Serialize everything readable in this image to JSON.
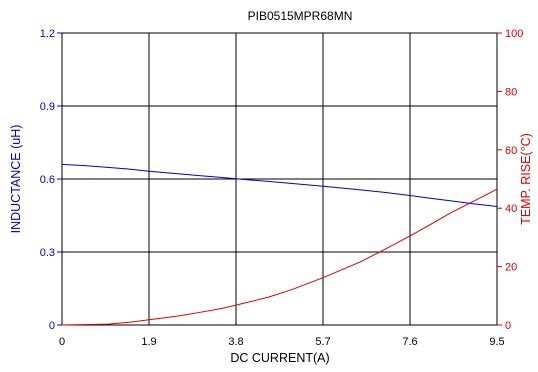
{
  "chart_data": {
    "type": "line",
    "title": "PIB0515MPR68MN",
    "xlabel": "DC CURRENT(A)",
    "ylabel_left": "INDUCTANCE (uH)",
    "ylabel_right": "TEMP. RISE(°C)",
    "xlim": [
      0,
      9.5
    ],
    "ylim_left": [
      0,
      1.2
    ],
    "ylim_right": [
      0,
      100
    ],
    "x_ticks": [
      "0",
      "1.9",
      "3.8",
      "5.7",
      "7.6",
      "9.5"
    ],
    "y_left_ticks": [
      "0",
      "0.3",
      "0.6",
      "0.9",
      "1.2"
    ],
    "y_right_ticks": [
      "0",
      "20",
      "40",
      "60",
      "80",
      "100"
    ],
    "grid": true,
    "legend": "none",
    "colors": {
      "inductance": "#0000cc",
      "temp_rise": "#dd0000",
      "grid": "#000000",
      "frame": "#000000"
    },
    "series": [
      {
        "axis": "left",
        "x": [
          0,
          0.5,
          1.0,
          1.5,
          1.9,
          2.5,
          3.0,
          3.5,
          3.8,
          4.5,
          5.0,
          5.7,
          6.5,
          7.0,
          7.6,
          8.0,
          8.5,
          9.0,
          9.5
        ],
        "values": [
          0.66,
          0.655,
          0.648,
          0.64,
          0.632,
          0.622,
          0.614,
          0.606,
          0.601,
          0.59,
          0.582,
          0.57,
          0.556,
          0.546,
          0.532,
          0.522,
          0.51,
          0.498,
          0.487
        ]
      },
      {
        "axis": "right",
        "x": [
          0,
          1.0,
          1.5,
          1.9,
          2.5,
          3.0,
          3.5,
          3.8,
          4.5,
          5.0,
          5.7,
          6.5,
          7.0,
          7.6,
          8.0,
          8.5,
          9.0,
          9.5
        ],
        "values": [
          0,
          0.3,
          1.0,
          1.8,
          3.0,
          4.3,
          5.7,
          6.8,
          9.5,
          12.0,
          16.2,
          21.5,
          25.5,
          30.5,
          34.0,
          38.5,
          42.5,
          46.5
        ]
      }
    ]
  }
}
